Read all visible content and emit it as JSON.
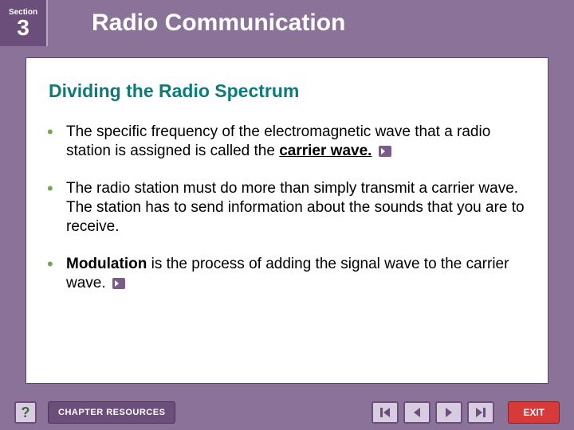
{
  "header": {
    "section_label": "Section",
    "section_number": "3",
    "title": "Radio Communication"
  },
  "content": {
    "subtitle": "Dividing the Radio Spectrum",
    "bullets": [
      {
        "pre": "The specific frequency of the electromagnetic wave that a radio station is assigned is called the ",
        "term": "carrier wave.",
        "post": "",
        "term_underline": true,
        "term_bold": true,
        "has_speaker": true
      },
      {
        "pre": "The radio station must do more than simply transmit a carrier wave. The station has to send information about the sounds that you are to receive.",
        "term": "",
        "post": "",
        "term_underline": false,
        "term_bold": false,
        "has_speaker": false
      },
      {
        "pre": " ",
        "term": "Modulation",
        "post": " is the process of adding the signal wave to the carrier wave.",
        "term_underline": false,
        "term_bold": true,
        "has_speaker": true
      }
    ]
  },
  "footer": {
    "help": "?",
    "chapter": "CHAPTER RESOURCES",
    "exit": "EXIT"
  },
  "colors": {
    "bg": "#8b7299",
    "section_box": "#6b4e7a",
    "subtitle": "#0a7a7a",
    "bullet_marker": "#6fa84f",
    "exit": "#d83a3a"
  }
}
